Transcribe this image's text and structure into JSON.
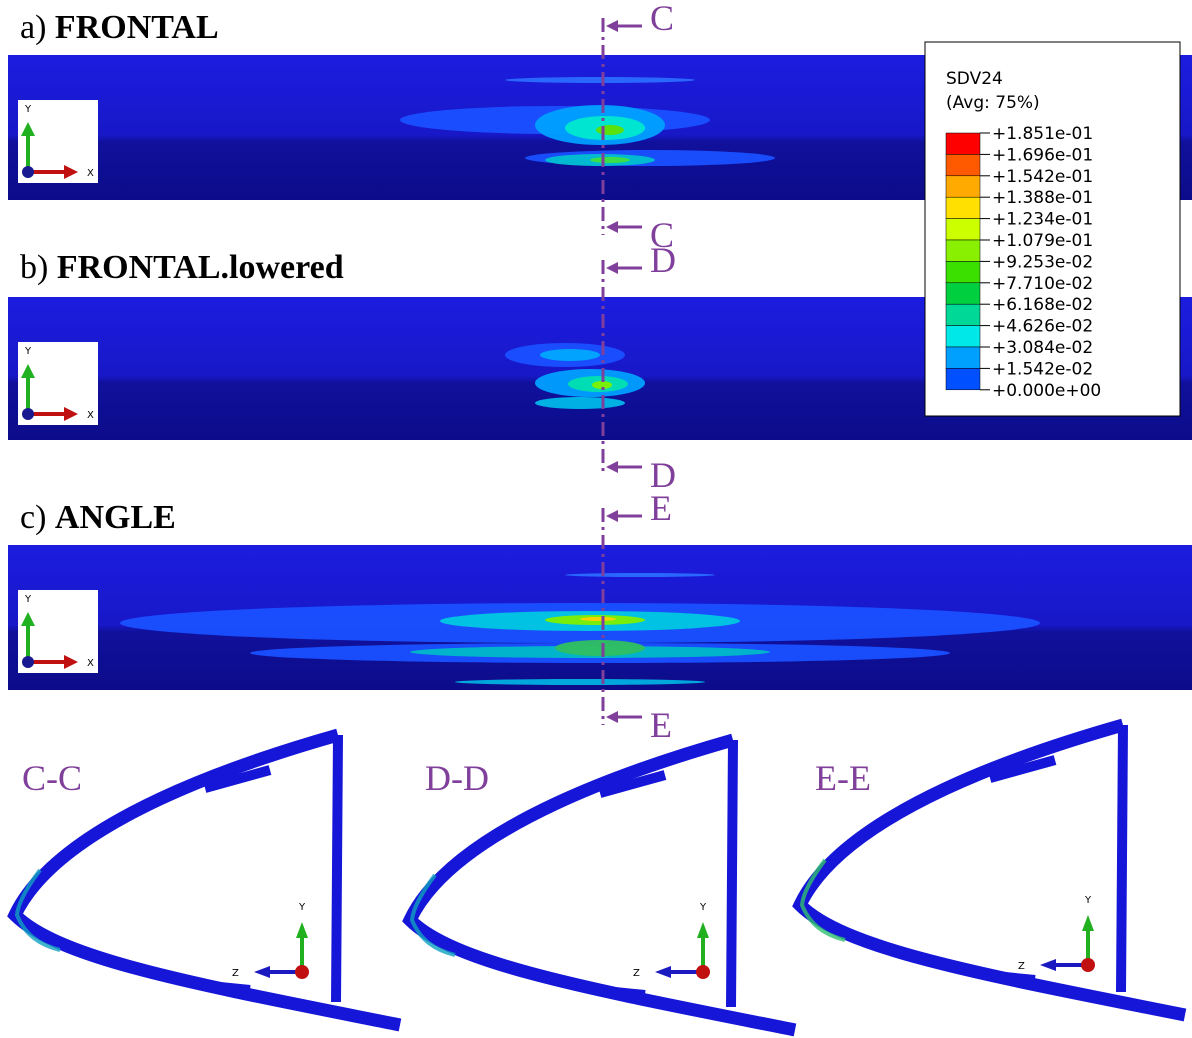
{
  "panels": [
    {
      "letter": "a)",
      "name": "FRONTAL",
      "section": "C"
    },
    {
      "letter": "b)",
      "name": "FRONTAL.lowered",
      "section": "D"
    },
    {
      "letter": "c)",
      "name": "ANGLE",
      "section": "E"
    }
  ],
  "legend": {
    "variable": "SDV24",
    "averaging": "(Avg: 75%)",
    "levels": [
      "+1.851e-01",
      "+1.696e-01",
      "+1.542e-01",
      "+1.388e-01",
      "+1.234e-01",
      "+1.079e-01",
      "+9.253e-02",
      "+7.710e-02",
      "+6.168e-02",
      "+4.626e-02",
      "+3.084e-02",
      "+1.542e-02",
      "+0.000e+00"
    ],
    "colors": [
      "#ff0000",
      "#ff5a00",
      "#ffaa00",
      "#ffe000",
      "#ccff00",
      "#88f000",
      "#3ce000",
      "#00d040",
      "#00d898",
      "#00e8e8",
      "#00a0ff",
      "#0050ff"
    ]
  },
  "sections": [
    "C-C",
    "D-D",
    "E-E"
  ],
  "axes": {
    "x": "X",
    "y": "Y",
    "z": "Z"
  }
}
